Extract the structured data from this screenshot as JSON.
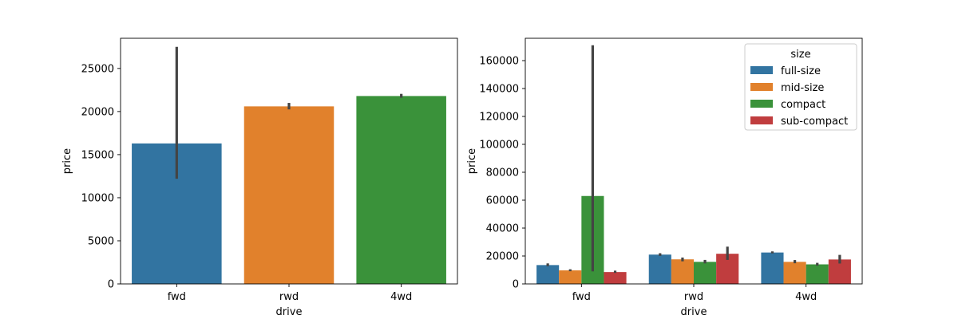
{
  "chart_data": [
    {
      "type": "bar",
      "xlabel": "drive",
      "ylabel": "price",
      "categories": [
        "fwd",
        "rwd",
        "4wd"
      ],
      "values": [
        16300,
        20600,
        21800
      ],
      "error_bars": [
        [
          12200,
          27500
        ],
        [
          20250,
          21000
        ],
        [
          21600,
          22050
        ]
      ],
      "colors": [
        "#3274a1",
        "#e1812c",
        "#3a923a"
      ],
      "ylim": [
        0,
        28500
      ],
      "yticks": [
        0,
        5000,
        10000,
        15000,
        20000,
        25000
      ]
    },
    {
      "type": "bar",
      "xlabel": "drive",
      "ylabel": "price",
      "categories": [
        "fwd",
        "rwd",
        "4wd"
      ],
      "series": [
        {
          "name": "full-size",
          "color": "#3274a1",
          "values": [
            13500,
            21000,
            22500
          ],
          "error_bars": [
            [
              12700,
              14700
            ],
            [
              20100,
              22000
            ],
            [
              21900,
              23300
            ]
          ]
        },
        {
          "name": "mid-size",
          "color": "#e1812c",
          "values": [
            9700,
            17600,
            15800
          ],
          "error_bars": [
            [
              9100,
              10500
            ],
            [
              16200,
              18900
            ],
            [
              14800,
              17100
            ]
          ]
        },
        {
          "name": "compact",
          "color": "#3a923a",
          "values": [
            63000,
            15800,
            14000
          ],
          "error_bars": [
            [
              9000,
              171000
            ],
            [
              14700,
              17200
            ],
            [
              13100,
              15100
            ]
          ]
        },
        {
          "name": "sub-compact",
          "color": "#c03d3e",
          "values": [
            8500,
            21600,
            17500
          ],
          "error_bars": [
            [
              7900,
              9500
            ],
            [
              17200,
              26700
            ],
            [
              14600,
              20800
            ]
          ]
        }
      ],
      "ylim": [
        0,
        176000
      ],
      "yticks": [
        0,
        20000,
        40000,
        60000,
        80000,
        100000,
        120000,
        140000,
        160000
      ],
      "legend": {
        "title": "size",
        "placement": "top-right"
      }
    }
  ]
}
